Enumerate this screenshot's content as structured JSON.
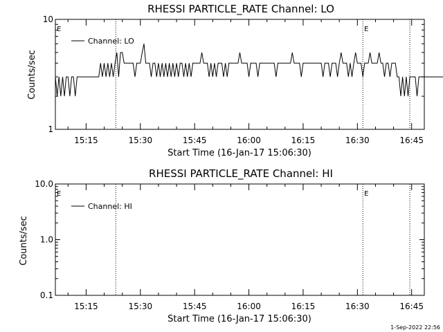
{
  "footer": {
    "timestamp": "1-Sep-2022 22:56"
  },
  "chart_data": [
    {
      "type": "line",
      "title": "RHESSI PARTICLE_RATE Channel: LO",
      "xlabel": "Start Time (16-Jan-17 15:06:30)",
      "ylabel": "Counts/sec",
      "yscale": "log",
      "ylim": [
        1,
        10
      ],
      "xlim_min": [
        0,
        102
      ],
      "x_ticks_min": [
        8.5,
        23.5,
        38.5,
        53.5,
        68.5,
        83.5,
        98.5
      ],
      "x_tick_labels": [
        "15:15",
        "15:30",
        "15:45",
        "16:00",
        "16:15",
        "16:30",
        "16:45"
      ],
      "y_ticks": [
        1,
        10
      ],
      "y_tick_labels": [
        "1",
        "10"
      ],
      "vlines_min": [
        16.7,
        85,
        98
      ],
      "markers": [
        {
          "label": "E",
          "x_min": 0
        },
        {
          "label": "E",
          "x_min": 85
        }
      ],
      "legend": {
        "position": "top-left",
        "entries": [
          "Channel: LO"
        ]
      },
      "series": [
        {
          "name": "Channel: LO",
          "x_step_min": 0.5,
          "values": [
            3,
            2,
            3,
            2,
            3,
            2,
            3,
            3,
            2,
            3,
            3,
            2,
            3,
            3,
            3,
            3,
            3,
            3,
            3,
            3,
            3,
            3,
            3,
            3,
            3,
            4,
            3,
            4,
            3,
            4,
            3,
            4,
            3,
            4,
            5,
            3,
            5,
            5,
            4,
            4,
            4,
            4,
            4,
            4,
            3,
            4,
            4,
            4,
            5,
            6,
            4,
            4,
            4,
            3,
            4,
            4,
            3,
            4,
            3,
            4,
            3,
            4,
            3,
            4,
            3,
            4,
            3,
            4,
            3,
            4,
            4,
            3,
            4,
            3,
            4,
            3,
            4,
            4,
            4,
            4,
            4,
            5,
            4,
            4,
            4,
            3,
            4,
            3,
            4,
            3,
            4,
            4,
            4,
            3,
            4,
            3,
            4,
            4,
            4,
            4,
            4,
            4,
            5,
            4,
            4,
            4,
            4,
            3,
            4,
            4,
            4,
            4,
            3,
            4,
            4,
            4,
            4,
            4,
            4,
            4,
            4,
            4,
            3,
            4,
            4,
            4,
            4,
            4,
            4,
            4,
            4,
            5,
            4,
            4,
            4,
            4,
            3,
            4,
            4,
            4,
            4,
            4,
            4,
            4,
            4,
            4,
            4,
            4,
            3,
            4,
            4,
            4,
            3,
            4,
            4,
            4,
            3,
            4,
            5,
            4,
            4,
            4,
            3,
            4,
            3,
            4,
            5,
            4,
            4,
            4,
            3,
            4,
            4,
            4,
            5,
            4,
            4,
            4,
            4,
            5,
            4,
            4,
            3,
            4,
            4,
            3,
            4,
            4,
            4,
            3,
            3,
            2,
            3,
            2,
            3,
            2,
            3,
            3,
            3,
            3,
            2,
            3,
            3,
            3,
            3,
            3,
            3,
            3,
            3,
            3,
            3,
            3,
            3,
            3,
            3,
            3,
            2,
            3,
            3,
            3,
            3
          ]
        }
      ]
    },
    {
      "type": "line",
      "title": "RHESSI PARTICLE_RATE Channel: HI",
      "xlabel": "Start Time (16-Jan-17 15:06:30)",
      "ylabel": "Counts/sec",
      "yscale": "log",
      "ylim": [
        0.1,
        10
      ],
      "xlim_min": [
        0,
        102
      ],
      "x_ticks_min": [
        8.5,
        23.5,
        38.5,
        53.5,
        68.5,
        83.5,
        98.5
      ],
      "x_tick_labels": [
        "15:15",
        "15:30",
        "15:45",
        "16:00",
        "16:15",
        "16:30",
        "16:45"
      ],
      "y_ticks": [
        0.1,
        1,
        10
      ],
      "y_tick_labels": [
        "0.1",
        "1.0",
        "10.0"
      ],
      "vlines_min": [
        16.7,
        85,
        98
      ],
      "markers": [
        {
          "label": "E",
          "x_min": 0
        },
        {
          "label": "E",
          "x_min": 85
        }
      ],
      "legend": {
        "position": "top-left",
        "entries": [
          "Channel: HI"
        ]
      },
      "series": [
        {
          "name": "Channel: HI",
          "x_step_min": 0.5,
          "values": []
        }
      ]
    }
  ]
}
